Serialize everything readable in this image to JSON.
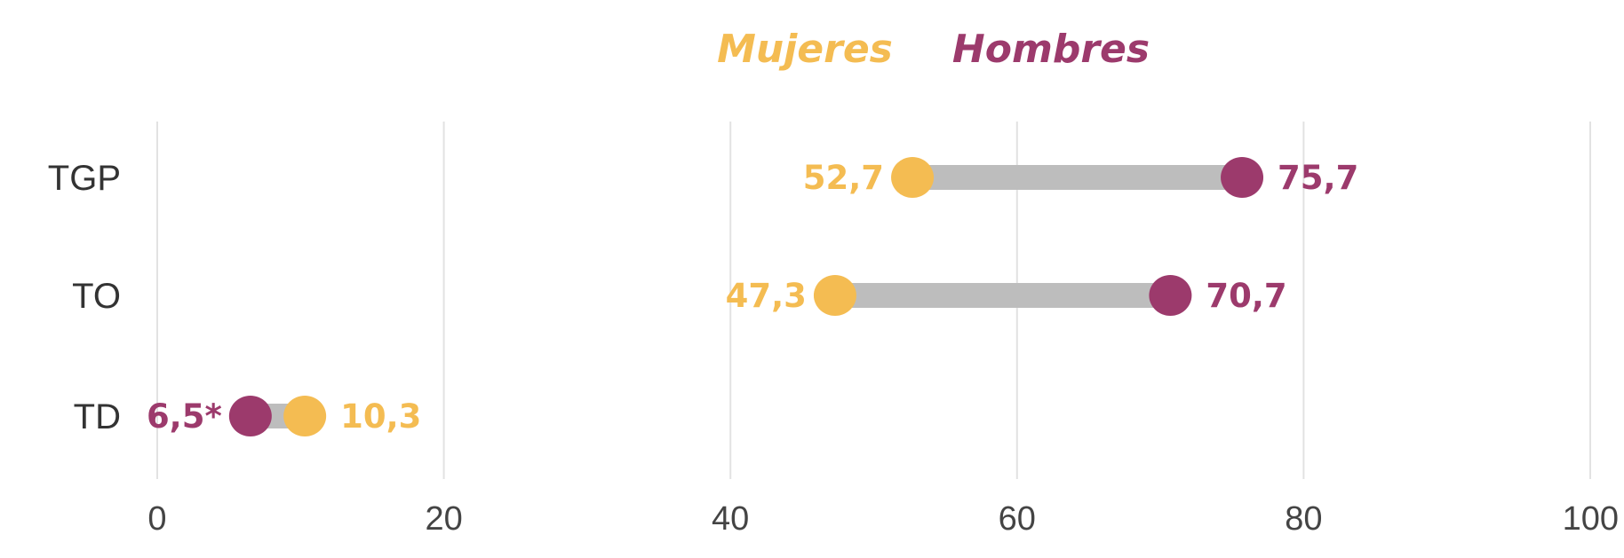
{
  "chart_data": {
    "type": "dumbbell",
    "categories": [
      "TGP",
      "TO",
      "TD"
    ],
    "series": [
      {
        "name": "Mujeres",
        "color": "#f4bc52",
        "values": [
          52.7,
          47.3,
          10.3
        ],
        "labels": [
          "52,7",
          "47,3",
          "10,3"
        ]
      },
      {
        "name": "Hombres",
        "color": "#9c3a6c",
        "values": [
          75.7,
          70.7,
          6.5
        ],
        "labels": [
          "75,7",
          "70,7",
          "6,5*"
        ]
      }
    ],
    "xlim": [
      0,
      100
    ],
    "xticks": [
      0,
      20,
      40,
      60,
      80,
      100
    ],
    "xtick_labels": [
      "0",
      "20",
      "40",
      "60",
      "80",
      "100"
    ],
    "connector_color": "#bdbdbd",
    "grid": true,
    "legend_position": "top-center",
    "title": "",
    "xlabel": "",
    "ylabel": ""
  }
}
